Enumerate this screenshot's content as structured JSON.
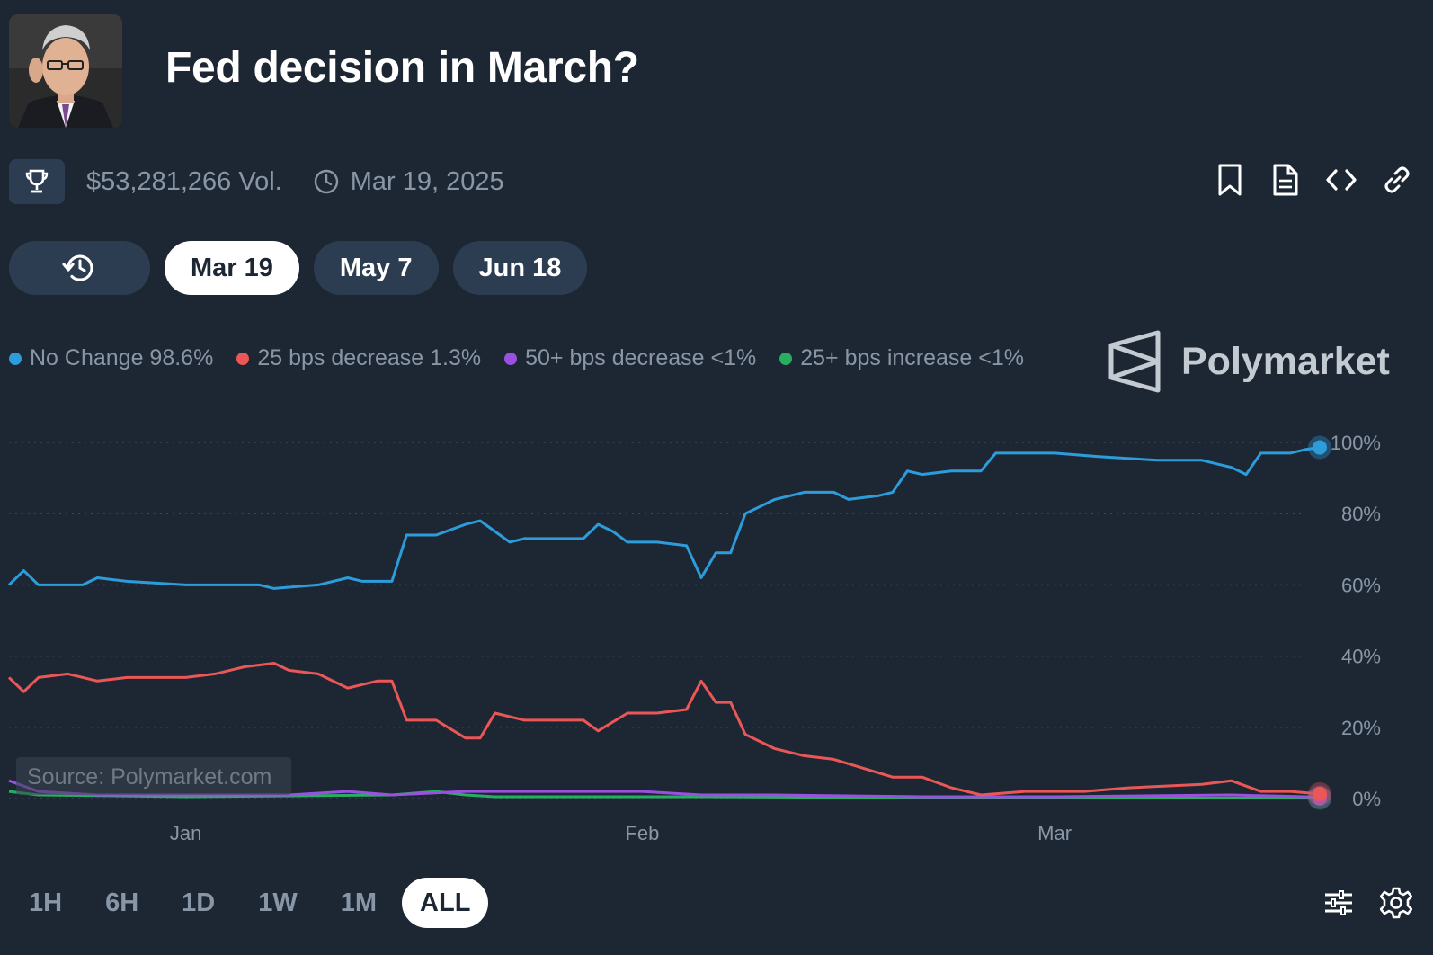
{
  "header": {
    "title": "Fed decision in March?",
    "volume": "$53,281,266 Vol.",
    "end_date": "Mar 19, 2025"
  },
  "toolbar_icons": [
    "bookmark-icon",
    "document-icon",
    "embed-code-icon",
    "link-icon"
  ],
  "date_tabs": [
    {
      "label": "Mar 19",
      "active": true
    },
    {
      "label": "May 7",
      "active": false
    },
    {
      "label": "Jun 18",
      "active": false
    }
  ],
  "legend": [
    {
      "label": "No Change 98.6%",
      "color": "#2d9cdb"
    },
    {
      "label": "25 bps decrease 1.3%",
      "color": "#eb5757"
    },
    {
      "label": "50+ bps decrease <1%",
      "color": "#9b51e0"
    },
    {
      "label": "25+ bps increase <1%",
      "color": "#27ae60"
    }
  ],
  "brand": "Polymarket",
  "watermark": "Source: Polymarket.com",
  "ranges": [
    {
      "label": "1H",
      "active": false
    },
    {
      "label": "6H",
      "active": false
    },
    {
      "label": "1D",
      "active": false
    },
    {
      "label": "1W",
      "active": false
    },
    {
      "label": "1M",
      "active": false
    },
    {
      "label": "ALL",
      "active": true
    }
  ],
  "colors": {
    "background": "#1d2734",
    "muted_text": "#8996a6",
    "pill": "#2c3d52"
  },
  "chart_data": {
    "type": "line",
    "ylim": [
      0,
      100
    ],
    "xlim": [
      "2024-12-20",
      "2025-03-19"
    ],
    "yticks": [
      "100%",
      "80%",
      "60%",
      "40%",
      "20%",
      "0%"
    ],
    "ytick_values": [
      100,
      80,
      60,
      40,
      20,
      0
    ],
    "xticks": [
      {
        "label": "Jan",
        "date": "2025-01-01"
      },
      {
        "label": "Feb",
        "date": "2025-02-01"
      },
      {
        "label": "Mar",
        "date": "2025-03-01"
      }
    ],
    "grid": true,
    "legend_position": "top-left",
    "series": [
      {
        "name": "No Change",
        "color": "#2d9cdb",
        "points": [
          [
            "2024-12-20",
            60
          ],
          [
            "2024-12-21",
            64
          ],
          [
            "2024-12-22",
            60
          ],
          [
            "2024-12-25",
            60
          ],
          [
            "2024-12-26",
            62
          ],
          [
            "2024-12-28",
            61
          ],
          [
            "2025-01-01",
            60
          ],
          [
            "2025-01-06",
            60
          ],
          [
            "2025-01-07",
            59
          ],
          [
            "2025-01-10",
            60
          ],
          [
            "2025-01-12",
            62
          ],
          [
            "2025-01-13",
            61
          ],
          [
            "2025-01-15",
            61
          ],
          [
            "2025-01-16",
            74
          ],
          [
            "2025-01-18",
            74
          ],
          [
            "2025-01-20",
            77
          ],
          [
            "2025-01-21",
            78
          ],
          [
            "2025-01-22",
            75
          ],
          [
            "2025-01-23",
            72
          ],
          [
            "2025-01-24",
            73
          ],
          [
            "2025-01-26",
            73
          ],
          [
            "2025-01-28",
            73
          ],
          [
            "2025-01-29",
            77
          ],
          [
            "2025-01-30",
            75
          ],
          [
            "2025-01-31",
            72
          ],
          [
            "2025-02-02",
            72
          ],
          [
            "2025-02-04",
            71
          ],
          [
            "2025-02-05",
            62
          ],
          [
            "2025-02-06",
            69
          ],
          [
            "2025-02-07",
            69
          ],
          [
            "2025-02-08",
            80
          ],
          [
            "2025-02-10",
            84
          ],
          [
            "2025-02-12",
            86
          ],
          [
            "2025-02-14",
            86
          ],
          [
            "2025-02-15",
            84
          ],
          [
            "2025-02-17",
            85
          ],
          [
            "2025-02-18",
            86
          ],
          [
            "2025-02-19",
            92
          ],
          [
            "2025-02-20",
            91
          ],
          [
            "2025-02-22",
            92
          ],
          [
            "2025-02-24",
            92
          ],
          [
            "2025-02-25",
            97
          ],
          [
            "2025-03-01",
            97
          ],
          [
            "2025-03-04",
            96
          ],
          [
            "2025-03-08",
            95
          ],
          [
            "2025-03-11",
            95
          ],
          [
            "2025-03-12",
            94
          ],
          [
            "2025-03-13",
            93
          ],
          [
            "2025-03-14",
            91
          ],
          [
            "2025-03-15",
            97
          ],
          [
            "2025-03-17",
            97
          ],
          [
            "2025-03-18",
            98
          ],
          [
            "2025-03-19",
            98.6
          ]
        ]
      },
      {
        "name": "25 bps decrease",
        "color": "#eb5757",
        "points": [
          [
            "2024-12-20",
            34
          ],
          [
            "2024-12-21",
            30
          ],
          [
            "2024-12-22",
            34
          ],
          [
            "2024-12-24",
            35
          ],
          [
            "2024-12-26",
            33
          ],
          [
            "2024-12-28",
            34
          ],
          [
            "2025-01-01",
            34
          ],
          [
            "2025-01-03",
            35
          ],
          [
            "2025-01-05",
            37
          ],
          [
            "2025-01-07",
            38
          ],
          [
            "2025-01-08",
            36
          ],
          [
            "2025-01-10",
            35
          ],
          [
            "2025-01-12",
            31
          ],
          [
            "2025-01-14",
            33
          ],
          [
            "2025-01-15",
            33
          ],
          [
            "2025-01-16",
            22
          ],
          [
            "2025-01-18",
            22
          ],
          [
            "2025-01-20",
            17
          ],
          [
            "2025-01-21",
            17
          ],
          [
            "2025-01-22",
            24
          ],
          [
            "2025-01-24",
            22
          ],
          [
            "2025-01-28",
            22
          ],
          [
            "2025-01-29",
            19
          ],
          [
            "2025-01-31",
            24
          ],
          [
            "2025-02-02",
            24
          ],
          [
            "2025-02-04",
            25
          ],
          [
            "2025-02-05",
            33
          ],
          [
            "2025-02-06",
            27
          ],
          [
            "2025-02-07",
            27
          ],
          [
            "2025-02-08",
            18
          ],
          [
            "2025-02-10",
            14
          ],
          [
            "2025-02-12",
            12
          ],
          [
            "2025-02-14",
            11
          ],
          [
            "2025-02-18",
            6
          ],
          [
            "2025-02-20",
            6
          ],
          [
            "2025-02-22",
            3
          ],
          [
            "2025-02-24",
            1
          ],
          [
            "2025-02-27",
            2
          ],
          [
            "2025-03-03",
            2
          ],
          [
            "2025-03-06",
            3
          ],
          [
            "2025-03-11",
            4
          ],
          [
            "2025-03-13",
            5
          ],
          [
            "2025-03-15",
            2
          ],
          [
            "2025-03-17",
            2
          ],
          [
            "2025-03-19",
            1.3
          ]
        ]
      },
      {
        "name": "50+ bps decrease",
        "color": "#9b51e0",
        "points": [
          [
            "2024-12-20",
            5
          ],
          [
            "2024-12-22",
            2
          ],
          [
            "2024-12-26",
            1
          ],
          [
            "2025-01-01",
            1
          ],
          [
            "2025-01-08",
            1
          ],
          [
            "2025-01-12",
            2
          ],
          [
            "2025-01-15",
            1
          ],
          [
            "2025-01-20",
            2
          ],
          [
            "2025-01-25",
            2
          ],
          [
            "2025-02-01",
            2
          ],
          [
            "2025-02-05",
            1
          ],
          [
            "2025-02-10",
            1
          ],
          [
            "2025-02-20",
            0.5
          ],
          [
            "2025-03-01",
            0.5
          ],
          [
            "2025-03-13",
            1
          ],
          [
            "2025-03-19",
            0.4
          ]
        ]
      },
      {
        "name": "25+ bps increase",
        "color": "#27ae60",
        "points": [
          [
            "2024-12-20",
            2
          ],
          [
            "2024-12-22",
            1
          ],
          [
            "2025-01-01",
            0.5
          ],
          [
            "2025-01-15",
            1
          ],
          [
            "2025-01-18",
            2
          ],
          [
            "2025-01-20",
            1
          ],
          [
            "2025-01-22",
            0.5
          ],
          [
            "2025-02-05",
            0.5
          ],
          [
            "2025-02-20",
            0.2
          ],
          [
            "2025-03-01",
            0.2
          ],
          [
            "2025-03-19",
            0.1
          ]
        ]
      }
    ]
  }
}
